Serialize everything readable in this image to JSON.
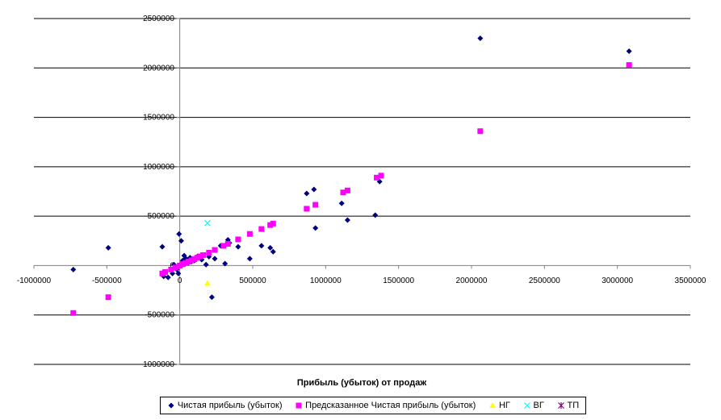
{
  "chart_data": {
    "type": "scatter",
    "title": "",
    "xlabel": "Прибыль (убыток) от продаж",
    "ylabel": "",
    "xlim": [
      -1000000,
      3500000
    ],
    "ylim": [
      -1000000,
      2500000
    ],
    "x_ticks": [
      "-1000000",
      "-500000",
      "0",
      "500000",
      "1000000",
      "1500000",
      "2000000",
      "2500000",
      "3000000",
      "3500000"
    ],
    "y_ticks": [
      "2500000",
      "2000000",
      "1500000",
      "1000000",
      "500000",
      "0",
      "-500000",
      "-1000000"
    ],
    "grid": "horizontal",
    "legend_position": "bottom",
    "series": [
      {
        "name": "Чистая прибыль (убыток)",
        "marker": "diamond",
        "color": "#000080",
        "points": [
          [
            -730000,
            -40000
          ],
          [
            -490000,
            180000
          ],
          [
            -120000,
            190000
          ],
          [
            -110000,
            -110000
          ],
          [
            -80000,
            -120000
          ],
          [
            -50000,
            -80000
          ],
          [
            -40000,
            10000
          ],
          [
            -20000,
            -40000
          ],
          [
            -10000,
            -80000
          ],
          [
            -5000,
            320000
          ],
          [
            10000,
            250000
          ],
          [
            20000,
            50000
          ],
          [
            30000,
            100000
          ],
          [
            40000,
            70000
          ],
          [
            50000,
            60000
          ],
          [
            60000,
            30000
          ],
          [
            70000,
            80000
          ],
          [
            80000,
            40000
          ],
          [
            100000,
            50000
          ],
          [
            120000,
            90000
          ],
          [
            150000,
            60000
          ],
          [
            180000,
            10000
          ],
          [
            200000,
            90000
          ],
          [
            220000,
            -320000
          ],
          [
            240000,
            70000
          ],
          [
            280000,
            200000
          ],
          [
            310000,
            20000
          ],
          [
            330000,
            260000
          ],
          [
            340000,
            230000
          ],
          [
            400000,
            190000
          ],
          [
            480000,
            70000
          ],
          [
            560000,
            200000
          ],
          [
            620000,
            180000
          ],
          [
            640000,
            140000
          ],
          [
            870000,
            730000
          ],
          [
            920000,
            770000
          ],
          [
            930000,
            380000
          ],
          [
            1110000,
            630000
          ],
          [
            1150000,
            460000
          ],
          [
            1340000,
            510000
          ],
          [
            1370000,
            850000
          ],
          [
            2060000,
            2300000
          ],
          [
            3080000,
            2170000
          ]
        ]
      },
      {
        "name": "Предсказанное Чистая прибыль (убыток)",
        "marker": "square",
        "color": "#FF00FF",
        "points": [
          [
            -730000,
            -480000
          ],
          [
            -490000,
            -320000
          ],
          [
            -120000,
            -80000
          ],
          [
            -100000,
            -65000
          ],
          [
            -60000,
            -40000
          ],
          [
            -30000,
            -20000
          ],
          [
            0,
            0
          ],
          [
            20000,
            15000
          ],
          [
            40000,
            27000
          ],
          [
            60000,
            40000
          ],
          [
            80000,
            53000
          ],
          [
            100000,
            66000
          ],
          [
            120000,
            80000
          ],
          [
            140000,
            93000
          ],
          [
            160000,
            106000
          ],
          [
            200000,
            130000
          ],
          [
            240000,
            158000
          ],
          [
            300000,
            200000
          ],
          [
            330000,
            220000
          ],
          [
            400000,
            265000
          ],
          [
            480000,
            320000
          ],
          [
            560000,
            370000
          ],
          [
            620000,
            410000
          ],
          [
            640000,
            425000
          ],
          [
            870000,
            575000
          ],
          [
            930000,
            615000
          ],
          [
            1120000,
            740000
          ],
          [
            1150000,
            760000
          ],
          [
            1350000,
            890000
          ],
          [
            1380000,
            910000
          ],
          [
            2060000,
            1360000
          ],
          [
            3080000,
            2030000
          ]
        ]
      },
      {
        "name": "НГ",
        "marker": "triangle",
        "color": "#FFFF00",
        "points": [
          [
            190000,
            -180000
          ]
        ]
      },
      {
        "name": "ВГ",
        "marker": "x",
        "color": "#00FFFF",
        "points": [
          [
            190000,
            430000
          ]
        ]
      },
      {
        "name": "ТП",
        "marker": "star",
        "color": "#800080",
        "points": []
      }
    ]
  }
}
